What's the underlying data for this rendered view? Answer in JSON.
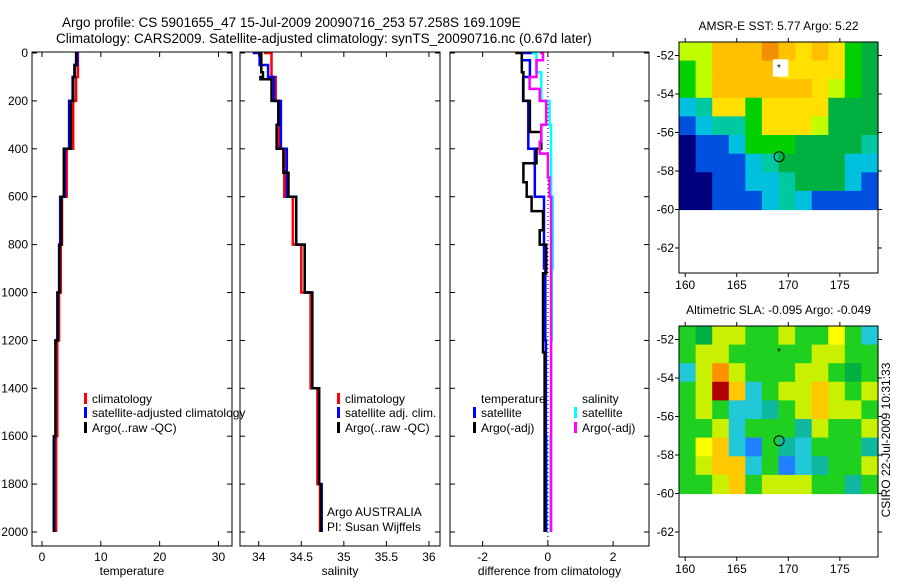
{
  "header": {
    "line1": "Argo profile: CS 5901655_47 15-Jul-2009 20090716_253 57.258S 169.109E",
    "line2": "Climatology: CARS2009. Satellite-adjusted climatology: synTS_20090716.nc (0.67d later)"
  },
  "credit": {
    "line1": "Argo AUSTRALIA",
    "line2": "PI: Susan Wijffels",
    "stamp": "CSIRO 22-Jul-2009 10:31:33"
  },
  "colors": {
    "red": "#ff0000",
    "blue": "#0000ff",
    "black": "#000000",
    "cyan": "#00ffff",
    "magenta": "#ff00ff"
  },
  "chart_data": [
    {
      "type": "line",
      "id": "temperature",
      "xlabel": "temperature",
      "ylabel": "",
      "xlim": [
        -1.7,
        32.3
      ],
      "ylim": [
        2060,
        0
      ],
      "xticks": [
        0,
        10,
        20,
        30
      ],
      "yticks": [
        0,
        200,
        400,
        600,
        800,
        1000,
        1200,
        1400,
        1600,
        1800,
        2000
      ],
      "legend": {
        "entries": [
          {
            "label": "climatology",
            "color": "#ff0000"
          },
          {
            "label": "satellite-adjusted climatology",
            "color": "#0000ff"
          },
          {
            "label": "Argo(..raw -QC)",
            "color": "#000000"
          }
        ]
      },
      "series": [
        {
          "name": "climatology",
          "color": "#ff0000",
          "depth": [
            0,
            100,
            200,
            400,
            600,
            800,
            1000,
            1200,
            1600,
            2000
          ],
          "values": [
            6.0,
            6.1,
            5.8,
            5.3,
            4.2,
            3.4,
            3.2,
            2.9,
            2.6,
            2.4
          ]
        },
        {
          "name": "satellite-adjusted climatology",
          "color": "#0000ff",
          "depth": [
            0,
            50,
            100,
            200,
            400,
            600,
            800,
            1000,
            1200,
            1600,
            2000
          ],
          "values": [
            5.7,
            6.0,
            5.6,
            5.2,
            4.6,
            3.9,
            3.1,
            2.9,
            2.6,
            2.3,
            2.1
          ]
        },
        {
          "name": "Argo(..raw -QC)",
          "color": "#000000",
          "depth": [
            0,
            50,
            100,
            200,
            400,
            600,
            800,
            1000,
            1200,
            1600,
            2000
          ],
          "values": [
            5.6,
            5.8,
            5.5,
            5.3,
            4.9,
            3.7,
            3.3,
            3.0,
            2.7,
            2.3,
            2.0
          ]
        }
      ]
    },
    {
      "type": "line",
      "id": "salinity",
      "xlabel": "salinity",
      "xlim": [
        33.78,
        36.13
      ],
      "ylim": [
        2060,
        0
      ],
      "xticks": [
        34,
        34.5,
        35,
        35.5,
        36
      ],
      "yticks": [
        0,
        200,
        400,
        600,
        800,
        1000,
        1200,
        1400,
        1600,
        1800,
        2000
      ],
      "legend": {
        "entries": [
          {
            "label": "climatology",
            "color": "#ff0000"
          },
          {
            "label": "satellite adj. clim.",
            "color": "#0000ff"
          },
          {
            "label": "Argo(..raw -QC)",
            "color": "#000000"
          }
        ]
      },
      "series": [
        {
          "name": "climatology",
          "color": "#ff0000",
          "depth": [
            0,
            100,
            200,
            400,
            600,
            800,
            1000,
            1400,
            1800,
            2000
          ],
          "values": [
            34.06,
            34.15,
            34.2,
            34.24,
            34.3,
            34.4,
            34.5,
            34.61,
            34.69,
            34.72
          ]
        },
        {
          "name": "satellite adj. clim.",
          "color": "#0000ff",
          "depth": [
            0,
            50,
            100,
            200,
            400,
            600,
            800,
            1000,
            1400,
            1800,
            2000
          ],
          "values": [
            33.93,
            34.01,
            34.11,
            34.18,
            34.26,
            34.33,
            34.44,
            34.54,
            34.63,
            34.71,
            34.74
          ]
        },
        {
          "name": "Argo(..raw -QC)",
          "color": "#000000",
          "depth": [
            0,
            80,
            100,
            110,
            200,
            300,
            400,
            500,
            600,
            800,
            1000,
            1400,
            1800,
            2000
          ],
          "values": [
            33.99,
            34.03,
            34.05,
            34.02,
            34.15,
            34.23,
            34.21,
            34.29,
            34.35,
            34.44,
            34.54,
            34.63,
            34.71,
            34.73
          ]
        }
      ]
    },
    {
      "type": "line",
      "id": "difference",
      "xlabel": "difference from climatology",
      "xlim": [
        -3.0,
        3.1
      ],
      "ylim": [
        2060,
        0
      ],
      "xticks": [
        -2,
        0,
        2
      ],
      "yticks": [
        0,
        200,
        400,
        600,
        800,
        1000,
        1200,
        1400,
        1600,
        1800,
        2000
      ],
      "legend": {
        "groups": [
          {
            "title": "temperature",
            "entries": [
              {
                "label": "satellite",
                "color": "#0000ff"
              },
              {
                "label": "Argo(-adj)",
                "color": "#000000"
              }
            ]
          },
          {
            "title": "salinity",
            "entries": [
              {
                "label": "satellite",
                "color": "#00ffff"
              },
              {
                "label": "Argo(-adj)",
                "color": "#ff00ff"
              }
            ]
          }
        ]
      },
      "series": [
        {
          "name": "temperature satellite",
          "color": "#0000ff",
          "depth": [
            0,
            30,
            100,
            200,
            400,
            600,
            900,
            1200,
            1600,
            2000
          ],
          "values": [
            -0.34,
            -0.8,
            -0.55,
            -0.76,
            -0.6,
            -0.4,
            -0.12,
            -0.08,
            -0.06,
            -0.05
          ]
        },
        {
          "name": "temperature Argo(-adj)",
          "color": "#000000",
          "depth": [
            0,
            80,
            200,
            240,
            330,
            400,
            460,
            540,
            600,
            660,
            740,
            800,
            920,
            1100,
            1250,
            1600,
            2000
          ],
          "values": [
            -1.0,
            -0.8,
            -0.75,
            -0.55,
            -0.55,
            -0.2,
            -0.35,
            -0.75,
            -0.65,
            -0.5,
            -0.15,
            -0.25,
            -0.05,
            -0.15,
            -0.15,
            -0.1,
            -0.1
          ]
        },
        {
          "name": "salinity satellite",
          "color": "#00ffff",
          "depth": [
            0,
            80,
            200,
            300,
            600,
            900,
            1200,
            1600,
            2000
          ],
          "values": [
            -0.5,
            -0.35,
            -0.2,
            0.05,
            0.1,
            0.15,
            0.12,
            0.1,
            0.08
          ]
        },
        {
          "name": "salinity Argo(-adj)",
          "color": "#ff00ff",
          "depth": [
            0,
            30,
            100,
            150,
            200,
            300,
            370,
            420,
            520,
            600,
            900,
            1300,
            2000
          ],
          "values": [
            -0.25,
            -0.15,
            -0.35,
            -0.56,
            -0.25,
            -0.05,
            -0.2,
            -0.25,
            0.0,
            0.05,
            0.1,
            0.1,
            0.1
          ]
        }
      ]
    },
    {
      "type": "heatmap",
      "id": "sst-map",
      "title": "AMSR-E SST: 5.77 Argo: 5.22",
      "xlim": [
        159.4,
        178.7
      ],
      "ylim": [
        -63.3,
        -51.3
      ],
      "xticks": [
        160,
        165,
        170,
        175
      ],
      "yticks": [
        -52,
        -54,
        -56,
        -58,
        -60,
        -62
      ],
      "grid_extent": {
        "lon": [
          159.4,
          178.7
        ],
        "lat": [
          -60,
          -51.3
        ]
      },
      "grid_rows": [
        "yyoooOoYoYgG",
        "gyooooYYYYgG",
        "gyooooooYygG",
        "ctYYgYYYYGGG",
        "bcttgYYYyGGG",
        "dbbcgggGGGGt",
        "dbbbctGGGGcc",
        "ddbbcctGGGcb",
        "ddbbbctcbbbb"
      ],
      "palette": {
        "d": "#00007f",
        "b": "#0050e0",
        "c": "#00c0e0",
        "t": "#00c8a0",
        "g": "#00d000",
        "G": "#00b040",
        "y": "#c0ff00",
        "Y": "#ffe000",
        "o": "#ffc000",
        "O": "#f09000"
      },
      "masked_patch": {
        "lon": [
          168.5,
          170.0
        ],
        "lat": [
          -53.1,
          -52.2
        ]
      },
      "float_position": {
        "lon": 169.109,
        "lat": -57.258
      },
      "previous_position": {
        "lon": 169.1,
        "lat": -52.6
      }
    },
    {
      "type": "heatmap",
      "id": "sla-map",
      "title": "Altimetric SLA: -0.095 Argo: -0.049",
      "xlim": [
        159.4,
        178.7
      ],
      "ylim": [
        -63.3,
        -51.3
      ],
      "xticks": [
        160,
        165,
        170,
        175
      ],
      "yticks": [
        -52,
        -54,
        -56,
        -58,
        -60,
        -62
      ],
      "grid_extent": {
        "lon": [
          159.4,
          178.7
        ],
        "lat": [
          -60,
          -51.3
        ]
      },
      "grid_rows": [
        "gGyyggyggYgc",
        "gyygggggyygg",
        "cyOygggyygGg",
        "gyRocgyyoygy",
        "gygcctgyoyyg",
        "ggycgggtyggy",
        "gYocbgtcgggt",
        "gyoocgbctggy",
        "ggyogyyyggtg"
      ],
      "palette": {
        "b": "#2080ff",
        "c": "#20c8d8",
        "t": "#10b8a0",
        "g": "#20d020",
        "G": "#00b040",
        "y": "#c8f000",
        "Y": "#ffff00",
        "o": "#ffc800",
        "O": "#ff9000",
        "R": "#b00000"
      },
      "float_position": {
        "lon": 169.109,
        "lat": -57.258
      },
      "previous_position": {
        "lon": 169.1,
        "lat": -52.6
      }
    }
  ]
}
